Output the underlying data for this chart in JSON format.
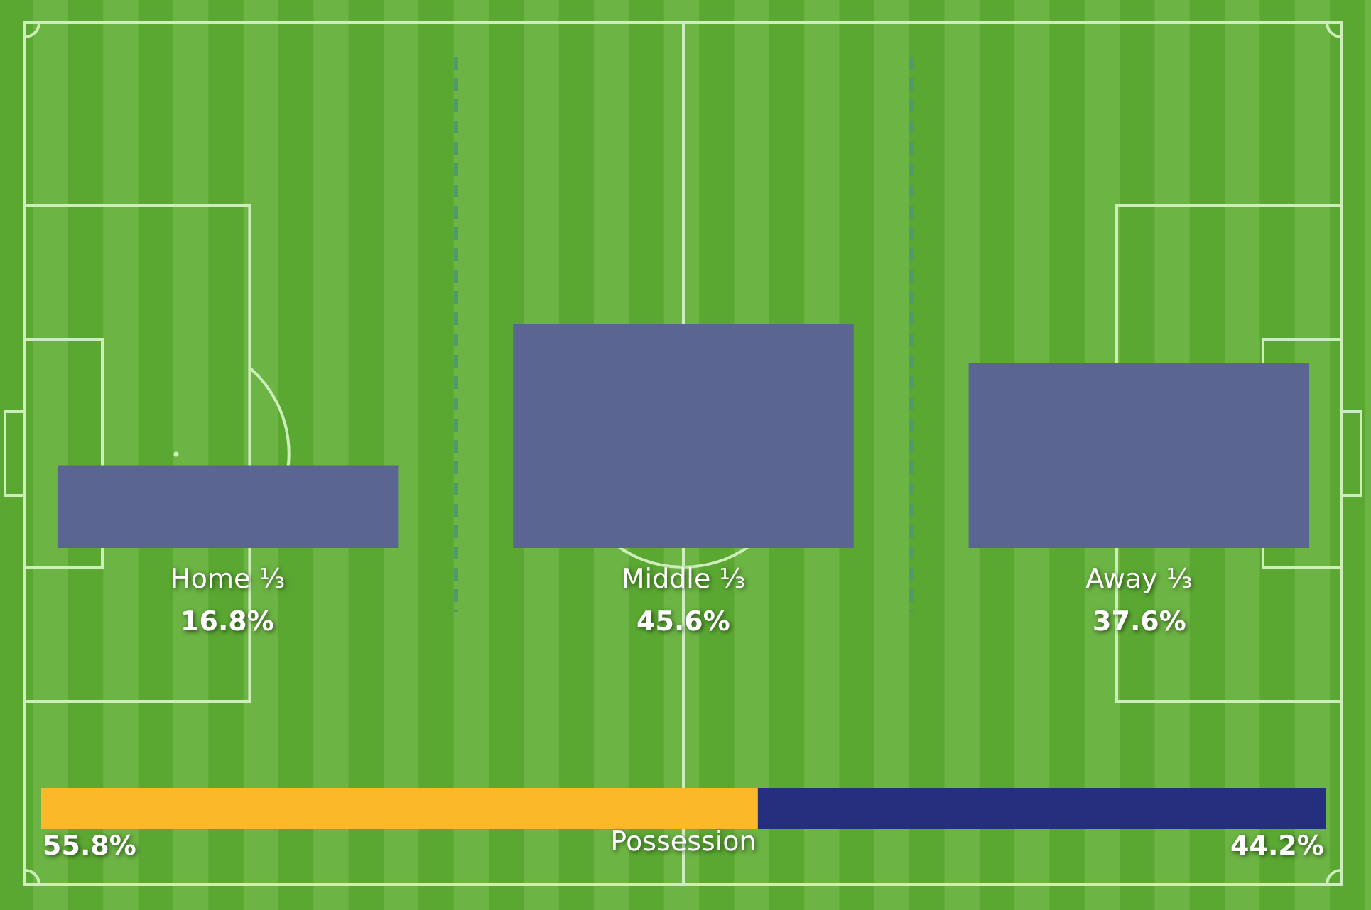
{
  "chart_data": [
    {
      "type": "bar",
      "categories": [
        "Home ⅓",
        "Middle ⅓",
        "Away ⅓"
      ],
      "values": [
        16.8,
        45.6,
        37.6
      ],
      "color": "#5a6592",
      "value_labels": [
        "16.8%",
        "45.6%",
        "37.6%"
      ],
      "tick_labels": "x"
    },
    {
      "type": "bar",
      "orientation": "horizontal",
      "stacked": true,
      "categories": [
        null
      ],
      "series": [
        {
          "color": "#fbb829",
          "values": [
            55.8
          ],
          "value_labels": [
            "55.8%"
          ]
        },
        {
          "color": "#262e7e",
          "values": [
            44.2
          ],
          "value_labels": [
            "44.2%"
          ]
        }
      ],
      "xlabel": "Possession",
      "tick_labels": false
    }
  ]
}
